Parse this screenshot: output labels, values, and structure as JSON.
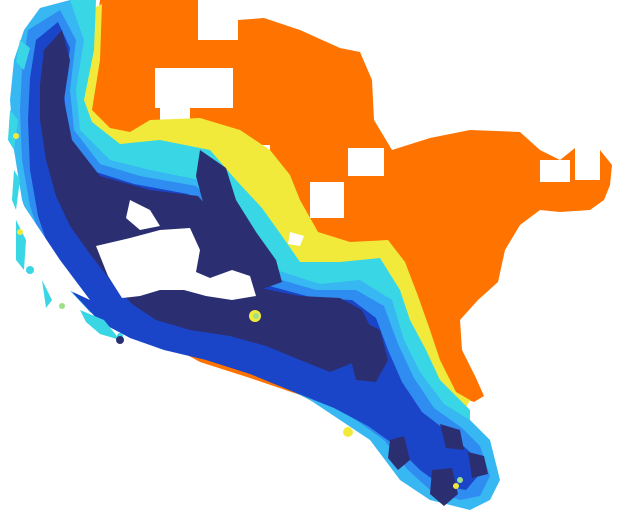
{
  "map": {
    "colors": {
      "background": "#ffffff",
      "upland": "#ff7300",
      "deep": "#2b2f72",
      "mid": "#1a45c8",
      "shallow": "#2f8cf0",
      "light": "#38b8f2",
      "cyan": "#39d6e6",
      "fringe_green": "#9ee08a",
      "fringe_yellow": "#f2ea3a"
    }
  }
}
